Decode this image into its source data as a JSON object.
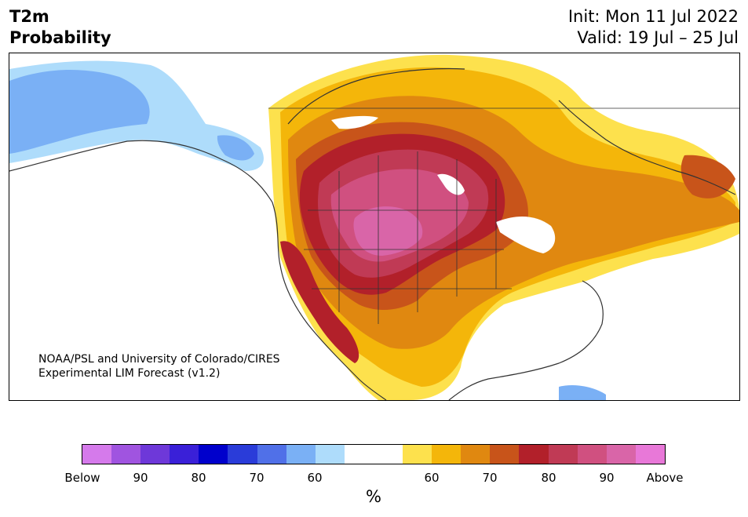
{
  "header": {
    "title_line1": "T2m",
    "title_line2": "Probability",
    "init_line": "Init: Mon 11 Jul 2022",
    "valid_line": "Valid: 19 Jul – 25 Jul"
  },
  "credit": {
    "line1": "NOAA/PSL and University of Colorado/CIRES",
    "line2": "Experimental LIM Forecast (v1.2)"
  },
  "colorbar": {
    "colors": [
      "#d57aeb",
      "#a054e0",
      "#6e38d9",
      "#3a20d8",
      "#0000cc",
      "#2a3cd9",
      "#5070e8",
      "#7ab0f5",
      "#aedcfb",
      "#ffffff",
      "#ffffff",
      "#fde14d",
      "#f4b60a",
      "#e08810",
      "#c8541a",
      "#b2202a",
      "#c03a55",
      "#d05080",
      "#d965a8",
      "#e878d8"
    ],
    "tick_labels": [
      "Below",
      "90",
      "80",
      "70",
      "60",
      "60",
      "70",
      "80",
      "90",
      "Above"
    ],
    "unit": "%"
  },
  "map": {
    "region": "North America",
    "palette": {
      "light_blue": "#aedcfb",
      "mid_blue": "#7ab0f5",
      "yellow": "#fde14d",
      "gold": "#f4b60a",
      "orange": "#e08810",
      "dark_orange": "#c8541a",
      "red": "#b2202a",
      "crimson": "#c03a55",
      "rose": "#d05080",
      "magenta": "#d965a8"
    }
  }
}
